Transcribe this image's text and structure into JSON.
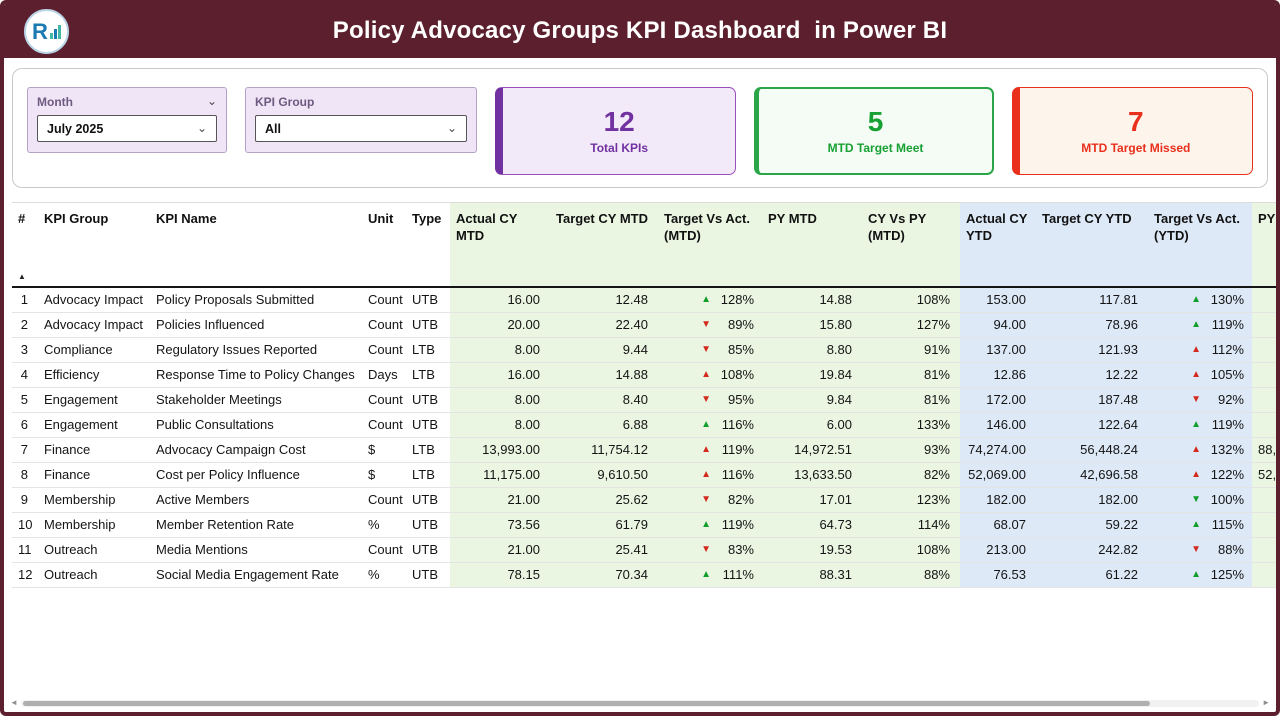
{
  "header": {
    "title": "Policy Advocacy Groups KPI Dashboard  in Power BI",
    "logo_letter": "R"
  },
  "icons": {
    "chevron": "⌄",
    "sort_asc": "▲",
    "scroll_left": "◄",
    "scroll_right": "►"
  },
  "filters": {
    "month": {
      "label": "Month",
      "value": "July 2025"
    },
    "kpi_group": {
      "label": "KPI Group",
      "value": "All"
    }
  },
  "cards": [
    {
      "value": "12",
      "label": "Total KPIs",
      "color": "#7131A1"
    },
    {
      "value": "5",
      "label": "MTD Target Meet",
      "color": "#17A033"
    },
    {
      "value": "7",
      "label": "MTD Target Missed",
      "color": "#E8301C"
    }
  ],
  "colors": {
    "header_bar": "#5C1F2E",
    "mtd_group_bg": "#EAF5E2",
    "ytd_group_bg": "#DDE9F7",
    "arrow_green": "#119E2B",
    "arrow_red": "#D42A1E"
  },
  "table": {
    "columns": [
      "#",
      "KPI Group",
      "KPI Name",
      "Unit",
      "Type",
      "Actual CY MTD",
      "Target CY MTD",
      "Target Vs Act. (MTD)",
      "PY MTD",
      "CY Vs PY (MTD)",
      "Actual CY YTD",
      "Target CY YTD",
      "Target Vs Act. (YTD)",
      "PY"
    ],
    "rows": [
      {
        "num": "1",
        "group": "Advocacy Impact",
        "name": "Policy Proposals Submitted",
        "unit": "Count",
        "type": "UTB",
        "actual_mtd": "16.00",
        "target_mtd": "12.48",
        "mtd": {
          "dir": "up",
          "color": "green",
          "pct": "128%"
        },
        "py_mtd": "14.88",
        "cy_py": "108%",
        "actual_ytd": "153.00",
        "target_ytd": "117.81",
        "ytd": {
          "dir": "up",
          "color": "green",
          "pct": "130%"
        },
        "py_ytd": ""
      },
      {
        "num": "2",
        "group": "Advocacy Impact",
        "name": "Policies Influenced",
        "unit": "Count",
        "type": "UTB",
        "actual_mtd": "20.00",
        "target_mtd": "22.40",
        "mtd": {
          "dir": "down",
          "color": "red",
          "pct": "89%"
        },
        "py_mtd": "15.80",
        "cy_py": "127%",
        "actual_ytd": "94.00",
        "target_ytd": "78.96",
        "ytd": {
          "dir": "up",
          "color": "green",
          "pct": "119%"
        },
        "py_ytd": ""
      },
      {
        "num": "3",
        "group": "Compliance",
        "name": "Regulatory Issues Reported",
        "unit": "Count",
        "type": "LTB",
        "actual_mtd": "8.00",
        "target_mtd": "9.44",
        "mtd": {
          "dir": "down",
          "color": "red",
          "pct": "85%"
        },
        "py_mtd": "8.80",
        "cy_py": "91%",
        "actual_ytd": "137.00",
        "target_ytd": "121.93",
        "ytd": {
          "dir": "up",
          "color": "red",
          "pct": "112%"
        },
        "py_ytd": ""
      },
      {
        "num": "4",
        "group": "Efficiency",
        "name": "Response Time to Policy Changes",
        "unit": "Days",
        "type": "LTB",
        "actual_mtd": "16.00",
        "target_mtd": "14.88",
        "mtd": {
          "dir": "up",
          "color": "red",
          "pct": "108%"
        },
        "py_mtd": "19.84",
        "cy_py": "81%",
        "actual_ytd": "12.86",
        "target_ytd": "12.22",
        "ytd": {
          "dir": "up",
          "color": "red",
          "pct": "105%"
        },
        "py_ytd": ""
      },
      {
        "num": "5",
        "group": "Engagement",
        "name": "Stakeholder Meetings",
        "unit": "Count",
        "type": "UTB",
        "actual_mtd": "8.00",
        "target_mtd": "8.40",
        "mtd": {
          "dir": "down",
          "color": "red",
          "pct": "95%"
        },
        "py_mtd": "9.84",
        "cy_py": "81%",
        "actual_ytd": "172.00",
        "target_ytd": "187.48",
        "ytd": {
          "dir": "down",
          "color": "red",
          "pct": "92%"
        },
        "py_ytd": ""
      },
      {
        "num": "6",
        "group": "Engagement",
        "name": "Public Consultations",
        "unit": "Count",
        "type": "UTB",
        "actual_mtd": "8.00",
        "target_mtd": "6.88",
        "mtd": {
          "dir": "up",
          "color": "green",
          "pct": "116%"
        },
        "py_mtd": "6.00",
        "cy_py": "133%",
        "actual_ytd": "146.00",
        "target_ytd": "122.64",
        "ytd": {
          "dir": "up",
          "color": "green",
          "pct": "119%"
        },
        "py_ytd": ""
      },
      {
        "num": "7",
        "group": "Finance",
        "name": "Advocacy Campaign Cost",
        "unit": "$",
        "type": "LTB",
        "actual_mtd": "13,993.00",
        "target_mtd": "11,754.12",
        "mtd": {
          "dir": "up",
          "color": "red",
          "pct": "119%"
        },
        "py_mtd": "14,972.51",
        "cy_py": "93%",
        "actual_ytd": "74,274.00",
        "target_ytd": "56,448.24",
        "ytd": {
          "dir": "up",
          "color": "red",
          "pct": "132%"
        },
        "py_ytd": "88,"
      },
      {
        "num": "8",
        "group": "Finance",
        "name": "Cost per Policy Influence",
        "unit": "$",
        "type": "LTB",
        "actual_mtd": "11,175.00",
        "target_mtd": "9,610.50",
        "mtd": {
          "dir": "up",
          "color": "red",
          "pct": "116%"
        },
        "py_mtd": "13,633.50",
        "cy_py": "82%",
        "actual_ytd": "52,069.00",
        "target_ytd": "42,696.58",
        "ytd": {
          "dir": "up",
          "color": "red",
          "pct": "122%"
        },
        "py_ytd": "52,"
      },
      {
        "num": "9",
        "group": "Membership",
        "name": "Active Members",
        "unit": "Count",
        "type": "UTB",
        "actual_mtd": "21.00",
        "target_mtd": "25.62",
        "mtd": {
          "dir": "down",
          "color": "red",
          "pct": "82%"
        },
        "py_mtd": "17.01",
        "cy_py": "123%",
        "actual_ytd": "182.00",
        "target_ytd": "182.00",
        "ytd": {
          "dir": "down",
          "color": "green",
          "pct": "100%"
        },
        "py_ytd": ""
      },
      {
        "num": "10",
        "group": "Membership",
        "name": "Member Retention Rate",
        "unit": "%",
        "type": "UTB",
        "actual_mtd": "73.56",
        "target_mtd": "61.79",
        "mtd": {
          "dir": "up",
          "color": "green",
          "pct": "119%"
        },
        "py_mtd": "64.73",
        "cy_py": "114%",
        "actual_ytd": "68.07",
        "target_ytd": "59.22",
        "ytd": {
          "dir": "up",
          "color": "green",
          "pct": "115%"
        },
        "py_ytd": ""
      },
      {
        "num": "11",
        "group": "Outreach",
        "name": "Media Mentions",
        "unit": "Count",
        "type": "UTB",
        "actual_mtd": "21.00",
        "target_mtd": "25.41",
        "mtd": {
          "dir": "down",
          "color": "red",
          "pct": "83%"
        },
        "py_mtd": "19.53",
        "cy_py": "108%",
        "actual_ytd": "213.00",
        "target_ytd": "242.82",
        "ytd": {
          "dir": "down",
          "color": "red",
          "pct": "88%"
        },
        "py_ytd": ""
      },
      {
        "num": "12",
        "group": "Outreach",
        "name": "Social Media Engagement Rate",
        "unit": "%",
        "type": "UTB",
        "actual_mtd": "78.15",
        "target_mtd": "70.34",
        "mtd": {
          "dir": "up",
          "color": "green",
          "pct": "111%"
        },
        "py_mtd": "88.31",
        "cy_py": "88%",
        "actual_ytd": "76.53",
        "target_ytd": "61.22",
        "ytd": {
          "dir": "up",
          "color": "green",
          "pct": "125%"
        },
        "py_ytd": ""
      }
    ]
  }
}
